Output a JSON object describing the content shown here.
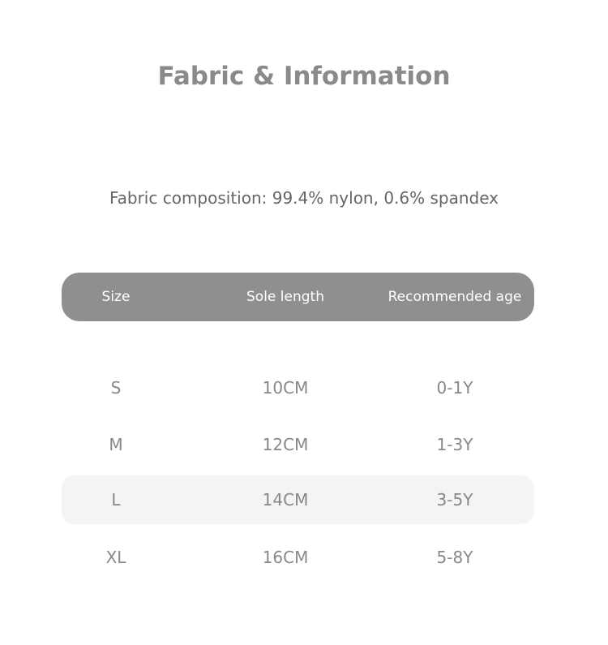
{
  "title": "Fabric & Information",
  "composition": "Fabric composition: 99.4% nylon, 0.6% spandex",
  "table": {
    "headers": [
      "Size",
      "Sole length",
      "Recommended age"
    ],
    "rows": [
      {
        "size": "S",
        "sole": "10CM",
        "age": "0-1Y",
        "highlighted": false
      },
      {
        "size": "M",
        "sole": "12CM",
        "age": "1-3Y",
        "highlighted": false
      },
      {
        "size": "L",
        "sole": "14CM",
        "age": "3-5Y",
        "highlighted": true
      },
      {
        "size": "XL",
        "sole": "16CM",
        "age": "5-8Y",
        "highlighted": false
      }
    ]
  },
  "colors": {
    "header_bg": "#8f8f8f",
    "highlight_row": "#f4f4f4",
    "text": "#888888"
  }
}
